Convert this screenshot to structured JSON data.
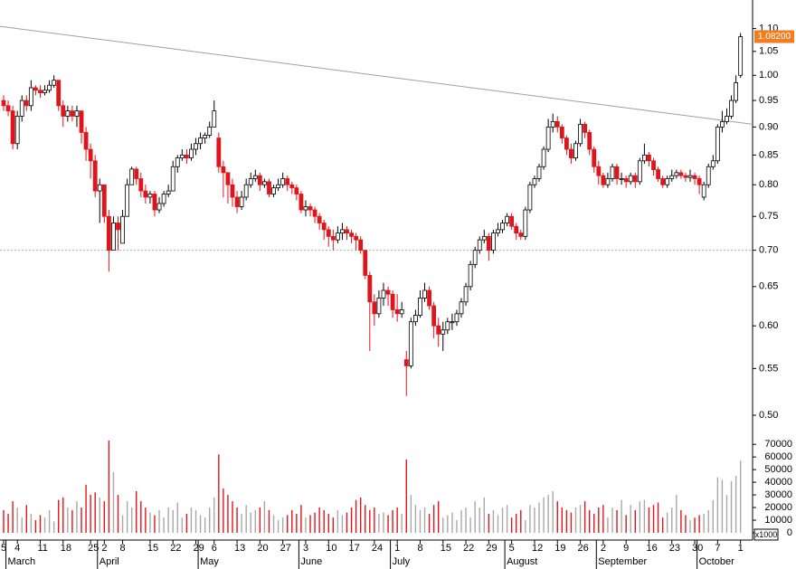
{
  "chart_data": {
    "type": "candlestick",
    "log_scale": true,
    "categories": [
      "5",
      null,
      null,
      "4",
      null,
      null,
      null,
      null,
      "11",
      null,
      null,
      null,
      null,
      "18",
      null,
      null,
      null,
      null,
      null,
      "25",
      null,
      null,
      "2",
      null,
      null,
      null,
      "8",
      null,
      null,
      null,
      null,
      null,
      "15",
      null,
      null,
      null,
      null,
      "22",
      null,
      null,
      null,
      null,
      "29",
      null,
      null,
      null,
      "6",
      null,
      null,
      null,
      null,
      "13",
      null,
      null,
      null,
      null,
      "20",
      null,
      null,
      null,
      null,
      "27",
      null,
      null,
      null,
      null,
      "3",
      null,
      null,
      null,
      null,
      "10",
      null,
      null,
      null,
      null,
      "17",
      null,
      null,
      null,
      null,
      "24",
      null,
      null,
      null,
      null,
      "1",
      null,
      null,
      null,
      null,
      "8",
      null,
      null,
      null,
      null,
      "15",
      null,
      null,
      null,
      null,
      "22",
      null,
      null,
      null,
      null,
      "29",
      null,
      null,
      null,
      null,
      "5",
      null,
      null,
      null,
      null,
      "12",
      null,
      null,
      null,
      null,
      "19",
      null,
      null,
      null,
      null,
      "26",
      null,
      null,
      null,
      null,
      "2",
      null,
      null,
      null,
      null,
      "9",
      null,
      null,
      null,
      null,
      "16",
      null,
      null,
      null,
      null,
      "23",
      null,
      null,
      null,
      null,
      "30",
      null,
      null,
      null,
      null,
      "7",
      null,
      null,
      null,
      null,
      "1"
    ],
    "months": [
      {
        "label": "March",
        "index": 1
      },
      {
        "label": "April",
        "index": 21
      },
      {
        "label": "May",
        "index": 43
      },
      {
        "label": "June",
        "index": 65
      },
      {
        "label": "July",
        "index": 85
      },
      {
        "label": "August",
        "index": 110
      },
      {
        "label": "September",
        "index": 130
      },
      {
        "label": "October",
        "index": 152
      }
    ],
    "open": [
      0.95,
      0.94,
      0.93,
      0.87,
      0.92,
      0.95,
      0.94,
      0.975,
      0.97,
      0.965,
      0.97,
      0.98,
      0.99,
      0.94,
      0.92,
      0.93,
      0.92,
      0.93,
      0.89,
      0.86,
      0.84,
      0.79,
      0.8,
      0.75,
      0.7,
      0.74,
      0.71,
      0.75,
      0.8,
      0.826,
      0.81,
      0.79,
      0.78,
      0.785,
      0.76,
      0.77,
      0.785,
      0.79,
      0.83,
      0.845,
      0.85,
      0.845,
      0.86,
      0.87,
      0.88,
      0.885,
      0.9,
      0.88,
      0.83,
      0.82,
      0.8,
      0.78,
      0.765,
      0.78,
      0.8,
      0.81,
      0.815,
      0.8,
      0.805,
      0.785,
      0.795,
      0.8,
      0.81,
      0.8,
      0.795,
      0.785,
      0.76,
      0.765,
      0.76,
      0.75,
      0.74,
      0.73,
      0.72,
      0.715,
      0.725,
      0.73,
      0.725,
      0.72,
      0.715,
      0.7,
      0.665,
      0.63,
      0.615,
      0.635,
      0.645,
      0.64,
      0.62,
      0.615,
      0.56,
      0.553,
      0.605,
      0.613,
      0.635,
      0.645,
      0.625,
      0.6,
      0.59,
      0.595,
      0.605,
      0.605,
      0.615,
      0.63,
      0.65,
      0.68,
      0.7,
      0.715,
      0.72,
      0.7,
      0.725,
      0.73,
      0.74,
      0.75,
      0.735,
      0.725,
      0.72,
      0.76,
      0.8,
      0.81,
      0.83,
      0.86,
      0.9,
      0.91,
      0.9,
      0.88,
      0.86,
      0.845,
      0.87,
      0.905,
      0.89,
      0.86,
      0.83,
      0.815,
      0.8,
      0.81,
      0.83,
      0.81,
      0.81,
      0.805,
      0.815,
      0.805,
      0.84,
      0.85,
      0.84,
      0.825,
      0.81,
      0.8,
      0.81,
      0.815,
      0.82,
      0.815,
      0.812,
      0.815,
      0.81,
      0.78,
      0.8,
      0.83,
      0.84,
      0.9,
      0.91,
      0.92,
      0.95,
      1.0
    ],
    "high": [
      0.96,
      0.95,
      0.94,
      0.93,
      0.96,
      0.96,
      0.99,
      0.98,
      0.98,
      0.98,
      0.99,
      1.0,
      0.99,
      0.95,
      0.94,
      0.94,
      0.94,
      0.93,
      0.9,
      0.87,
      0.85,
      0.81,
      0.8,
      0.76,
      0.75,
      0.75,
      0.76,
      0.81,
      0.83,
      0.83,
      0.82,
      0.8,
      0.79,
      0.79,
      0.78,
      0.79,
      0.8,
      0.84,
      0.85,
      0.86,
      0.86,
      0.87,
      0.88,
      0.89,
      0.89,
      0.91,
      0.95,
      0.89,
      0.84,
      0.82,
      0.81,
      0.79,
      0.79,
      0.81,
      0.82,
      0.825,
      0.82,
      0.81,
      0.81,
      0.8,
      0.81,
      0.82,
      0.815,
      0.805,
      0.8,
      0.79,
      0.775,
      0.77,
      0.765,
      0.755,
      0.745,
      0.735,
      0.73,
      0.735,
      0.74,
      0.735,
      0.73,
      0.725,
      0.72,
      0.7,
      0.67,
      0.64,
      0.645,
      0.655,
      0.65,
      0.645,
      0.64,
      0.63,
      0.57,
      0.61,
      0.62,
      0.645,
      0.655,
      0.65,
      0.63,
      0.61,
      0.605,
      0.61,
      0.615,
      0.62,
      0.635,
      0.655,
      0.685,
      0.705,
      0.72,
      0.73,
      0.725,
      0.73,
      0.74,
      0.745,
      0.755,
      0.755,
      0.74,
      0.73,
      0.765,
      0.805,
      0.815,
      0.835,
      0.865,
      0.915,
      0.925,
      0.92,
      0.905,
      0.885,
      0.87,
      0.875,
      0.915,
      0.91,
      0.895,
      0.865,
      0.84,
      0.82,
      0.82,
      0.835,
      0.835,
      0.82,
      0.815,
      0.82,
      0.82,
      0.845,
      0.87,
      0.855,
      0.845,
      0.83,
      0.815,
      0.815,
      0.825,
      0.825,
      0.825,
      0.82,
      0.825,
      0.82,
      0.815,
      0.805,
      0.835,
      0.85,
      0.905,
      0.93,
      0.935,
      0.96,
      1.0,
      1.09
    ],
    "low": [
      0.93,
      0.92,
      0.86,
      0.86,
      0.91,
      0.93,
      0.93,
      0.96,
      0.955,
      0.96,
      0.965,
      0.975,
      0.93,
      0.9,
      0.91,
      0.91,
      0.9,
      0.87,
      0.84,
      0.81,
      0.78,
      0.74,
      0.74,
      0.67,
      0.7,
      0.7,
      0.71,
      0.75,
      0.8,
      0.8,
      0.78,
      0.77,
      0.77,
      0.75,
      0.755,
      0.765,
      0.78,
      0.79,
      0.82,
      0.84,
      0.835,
      0.84,
      0.85,
      0.86,
      0.87,
      0.88,
      0.9,
      0.82,
      0.78,
      0.77,
      0.765,
      0.755,
      0.76,
      0.775,
      0.795,
      0.805,
      0.79,
      0.795,
      0.78,
      0.78,
      0.79,
      0.795,
      0.79,
      0.785,
      0.775,
      0.755,
      0.75,
      0.75,
      0.74,
      0.73,
      0.715,
      0.705,
      0.7,
      0.71,
      0.715,
      0.715,
      0.71,
      0.7,
      0.695,
      0.66,
      0.57,
      0.6,
      0.61,
      0.625,
      0.625,
      0.61,
      0.605,
      0.61,
      0.52,
      0.55,
      0.6,
      0.61,
      0.63,
      0.62,
      0.585,
      0.575,
      0.57,
      0.59,
      0.595,
      0.6,
      0.61,
      0.625,
      0.645,
      0.675,
      0.695,
      0.71,
      0.685,
      0.695,
      0.72,
      0.725,
      0.735,
      0.73,
      0.715,
      0.715,
      0.715,
      0.755,
      0.795,
      0.805,
      0.825,
      0.855,
      0.89,
      0.89,
      0.87,
      0.85,
      0.835,
      0.84,
      0.865,
      0.88,
      0.85,
      0.82,
      0.8,
      0.795,
      0.795,
      0.805,
      0.8,
      0.8,
      0.795,
      0.8,
      0.795,
      0.8,
      0.835,
      0.83,
      0.815,
      0.805,
      0.795,
      0.795,
      0.805,
      0.81,
      0.81,
      0.805,
      0.805,
      0.8,
      0.785,
      0.775,
      0.795,
      0.825,
      0.835,
      0.89,
      0.905,
      0.915,
      0.945,
      0.995
    ],
    "close": [
      0.94,
      0.93,
      0.87,
      0.92,
      0.95,
      0.94,
      0.975,
      0.97,
      0.965,
      0.97,
      0.98,
      0.99,
      0.94,
      0.92,
      0.93,
      0.92,
      0.93,
      0.89,
      0.86,
      0.84,
      0.79,
      0.8,
      0.75,
      0.7,
      0.74,
      0.73,
      0.75,
      0.8,
      0.826,
      0.81,
      0.79,
      0.78,
      0.785,
      0.76,
      0.77,
      0.785,
      0.79,
      0.83,
      0.845,
      0.85,
      0.845,
      0.86,
      0.87,
      0.88,
      0.885,
      0.9,
      0.93,
      0.83,
      0.82,
      0.8,
      0.78,
      0.765,
      0.78,
      0.8,
      0.81,
      0.815,
      0.8,
      0.805,
      0.785,
      0.795,
      0.8,
      0.81,
      0.8,
      0.795,
      0.785,
      0.76,
      0.765,
      0.76,
      0.75,
      0.74,
      0.73,
      0.72,
      0.715,
      0.725,
      0.73,
      0.725,
      0.72,
      0.715,
      0.7,
      0.665,
      0.63,
      0.615,
      0.635,
      0.645,
      0.64,
      0.62,
      0.615,
      0.62,
      0.553,
      0.605,
      0.613,
      0.635,
      0.645,
      0.625,
      0.6,
      0.59,
      0.595,
      0.605,
      0.605,
      0.615,
      0.63,
      0.65,
      0.68,
      0.7,
      0.715,
      0.72,
      0.7,
      0.725,
      0.73,
      0.74,
      0.75,
      0.735,
      0.725,
      0.72,
      0.76,
      0.8,
      0.81,
      0.83,
      0.86,
      0.9,
      0.91,
      0.9,
      0.88,
      0.86,
      0.845,
      0.87,
      0.905,
      0.89,
      0.86,
      0.83,
      0.815,
      0.8,
      0.81,
      0.83,
      0.81,
      0.81,
      0.805,
      0.815,
      0.805,
      0.84,
      0.85,
      0.84,
      0.825,
      0.81,
      0.8,
      0.81,
      0.815,
      0.82,
      0.815,
      0.812,
      0.815,
      0.81,
      0.8,
      0.8,
      0.83,
      0.84,
      0.9,
      0.91,
      0.92,
      0.95,
      0.985,
      1.082
    ],
    "volume": [
      18000,
      15000,
      25000,
      20000,
      12000,
      22000,
      15000,
      10000,
      14000,
      12000,
      18000,
      9000,
      26000,
      28000,
      20000,
      18000,
      25000,
      20000,
      38000,
      30000,
      32000,
      28000,
      25000,
      73000,
      48000,
      30000,
      14000,
      25000,
      20000,
      33000,
      25000,
      20000,
      16000,
      14000,
      18000,
      12000,
      20000,
      18000,
      24000,
      12000,
      15000,
      20000,
      18000,
      14000,
      12000,
      20000,
      28000,
      62000,
      35000,
      30000,
      25000,
      20000,
      15000,
      22000,
      16000,
      18000,
      20000,
      25000,
      18000,
      14000,
      10000,
      12000,
      14000,
      18000,
      15000,
      22000,
      12000,
      14000,
      16000,
      20000,
      18000,
      15000,
      12000,
      18000,
      14000,
      16000,
      20000,
      26000,
      28000,
      22000,
      18000,
      20000,
      15000,
      16000,
      14000,
      18000,
      20000,
      15000,
      58000,
      30000,
      22000,
      18000,
      20000,
      15000,
      22000,
      25000,
      12000,
      14000,
      16000,
      10000,
      18000,
      20000,
      12000,
      25000,
      20000,
      28000,
      15000,
      18000,
      14000,
      20000,
      22000,
      12000,
      15000,
      18000,
      10000,
      22000,
      20000,
      24000,
      28000,
      30000,
      33000,
      25000,
      20000,
      18000,
      16000,
      20000,
      22000,
      25000,
      18000,
      15000,
      20000,
      22000,
      12000,
      20000,
      18000,
      26000,
      14000,
      22000,
      18000,
      25000,
      26000,
      20000,
      22000,
      24000,
      12000,
      16000,
      20000,
      30000,
      18000,
      14000,
      10000,
      12000,
      14000,
      15000,
      18000,
      26000,
      44000,
      42000,
      30000,
      41000,
      45000,
      57000
    ],
    "up_color": "#ffffff",
    "down_color": "#e0151b",
    "volume_up_color": "#a8a8a8",
    "ylim": [
      0.49,
      1.166
    ],
    "yticks": [
      {
        "value": 1.1,
        "label": "1.10"
      },
      1.05,
      {
        "value": 1.0,
        "label": "1.00"
      },
      0.95,
      {
        "value": 0.9,
        "label": "0.90"
      },
      0.85,
      {
        "value": 0.8,
        "label": "0.80"
      },
      0.75,
      {
        "value": 0.7,
        "label": "0.70"
      },
      0.65,
      {
        "value": 0.6,
        "label": "0.60"
      },
      0.55,
      {
        "value": 0.5,
        "label": "0.50"
      }
    ],
    "volume_ylim": [
      0,
      78000
    ],
    "volume_yticks": [
      0,
      10000,
      20000,
      30000,
      40000,
      50000,
      60000,
      70000
    ],
    "volume_unit": "x1000",
    "last_price": {
      "value": 1.082,
      "label": "1.08200"
    },
    "last_price_color": "#f47c20",
    "reference_line": 0.7,
    "trendline": {
      "from": 1.105,
      "to": 0.905
    }
  }
}
